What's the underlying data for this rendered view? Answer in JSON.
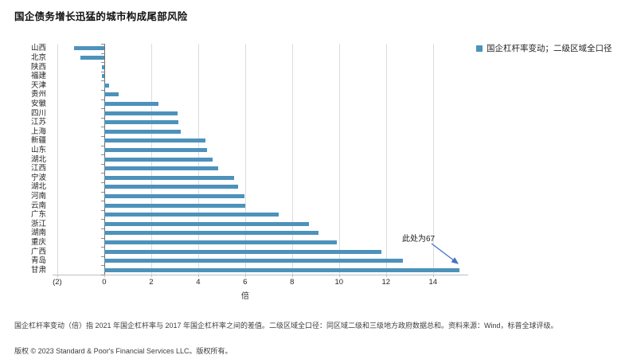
{
  "title": "国企债务增长迅猛的城市构成尾部风险",
  "legend": {
    "label": "国企杠杆率变动；二级区域全口径",
    "marker_color": "#4d92bb"
  },
  "annotation": {
    "text": "此处为67",
    "arrow_color": "#4472c4"
  },
  "chart_data": {
    "type": "bar",
    "orientation": "horizontal",
    "title": "国企债务增长迅猛的城市构成尾部风险",
    "legend_entry": "国企杠杆率变动；二级区域全口径",
    "categories": [
      "山西",
      "北京",
      "陕西",
      "福建",
      "天津",
      "贵州",
      "安徽",
      "四川",
      "江苏",
      "上海",
      "新疆",
      "山东",
      "湖北",
      "江西",
      "宁波",
      "湖北",
      "河南",
      "云南",
      "广东",
      "浙江",
      "湖南",
      "重庆",
      "广西",
      "青岛",
      "甘肃"
    ],
    "values": [
      -1.3,
      -1.0,
      -0.1,
      -0.1,
      0.2,
      0.6,
      2.3,
      3.1,
      3.15,
      3.25,
      4.3,
      4.35,
      4.6,
      4.85,
      5.5,
      5.7,
      5.95,
      6.0,
      7.4,
      8.7,
      9.1,
      9.9,
      11.8,
      12.7,
      67
    ],
    "display_cap": 15.1,
    "capped_category": "甘肃",
    "capped_note": "此处为67",
    "xlabel": "倍",
    "xlim": [
      -2.2,
      15.5
    ],
    "xticks": [
      -2,
      0,
      2,
      4,
      6,
      8,
      10,
      12,
      14
    ],
    "xtick_labels": [
      "(2)",
      "0",
      "2",
      "4",
      "6",
      "8",
      "10",
      "12",
      "14"
    ],
    "grid": "vertical",
    "bar_color": "#4d92bb"
  },
  "footnote": "国企杠杆率变动（倍）指 2021 年国企杠杆率与 2017 年国企杠杆率之间的差值。二级区域全口径：同区域二级和三级地方政府数据总和。资料来源：Wind，标普全球评级。",
  "copyright": "版权 © 2023 Standard & Poor's Financial Services LLC。版权所有。"
}
